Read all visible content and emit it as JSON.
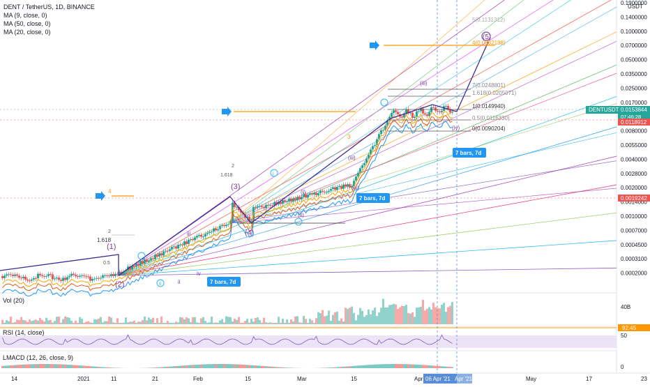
{
  "legend": {
    "title": "DENT / TetherUS, 1D, BINANCE",
    "ma1": "MA (9, close, 0)",
    "ma2": "MA (50, close, 0)",
    "ma3": "MA (20, close, 0)"
  },
  "price_axis": {
    "currency": "USDT",
    "labels": [
      "0.1900000",
      "0.1400000",
      "0.1000000",
      "0.0700000",
      "0.0500000",
      "0.0350000",
      "0.0250000",
      "0.0170000",
      "0.0120000",
      "0.0080000",
      "0.0055000",
      "0.0040000",
      "0.0028000",
      "0.0020000",
      "0.0014000",
      "0.0010000",
      "0.0007000",
      "0.0004500",
      "0.0003100",
      "0.0002000"
    ],
    "symbol_tag": "DENTUSDT",
    "price_tag": "0.0153844",
    "countdown": "07:46:28",
    "tag2": "0.0118912",
    "tag3": "0.0019242"
  },
  "time_axis": {
    "labels": [
      "14",
      "2021",
      "11",
      "21",
      "Feb",
      "15",
      "Mar",
      "15",
      "Apr",
      "May",
      "17",
      "23"
    ],
    "highlight": "06 Apr '21",
    "highlight2": "Apr '21"
  },
  "panes": {
    "vol": "Vol (20)",
    "vol_scale": "40B",
    "rsi": "RSI (14, close)",
    "rsi_value": "92.45",
    "rsi_scale": "50",
    "macd": "LMACD (12, 26, close, 9)",
    "macd_scale": "0"
  },
  "annotations": {
    "bars_label": "7 bars, 7d",
    "wave_2": "(2)",
    "wave_1": "(1)",
    "wave_3": "(3)",
    "wave_4": "(4)",
    "wave_5": "(5)",
    "fib_5": "5(0.1131312)",
    "fib_4": "4(0.0682188)",
    "fib_7": "7(0.0248801)",
    "fib_1618": "1.618(0.0205071)",
    "fib_1": "1(0.0149940)",
    "fib_05": "0.5(0.0116330)",
    "fib_0": "0(0.0090204)",
    "lbl_2": "2",
    "lbl_1618": "1.618",
    "lbl_05": "0.5",
    "lbl_4": "4",
    "lbl_3": "3",
    "iii": "iii",
    "ii": "ii",
    "i": "i",
    "iv": "iv",
    "ii_circ": "ii",
    "i_circ": "i",
    "iii_paren": "(iii)",
    "iv_paren": "(iv)",
    "ii_paren": "(ii)",
    "i_paren": "(i)"
  },
  "colors": {
    "up": "#26a69a",
    "down": "#ef5350",
    "accent": "#2962ff",
    "bars_tag": "#2196f3",
    "orange": "#ff9800",
    "purple": "#7b3fa0"
  }
}
